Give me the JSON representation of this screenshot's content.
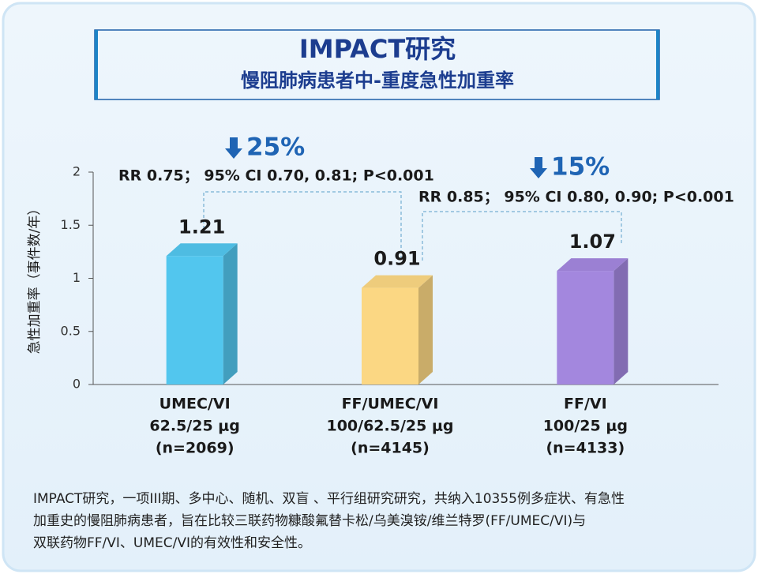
{
  "chart_data": {
    "type": "bar",
    "title": "IMPACT研究",
    "subtitle": "慢阻肺病患者中-重度急性加重率",
    "y_label": "急性加重率（事件数/年）",
    "categories": [
      [
        "UMEC/VI",
        "62.5/25 μg",
        "(n=2069)"
      ],
      [
        "FF/UMEC/VI",
        "100/62.5/25 μg",
        "(n=4145)"
      ],
      [
        "FF/VI",
        "100/25 μg",
        "(n=4133)"
      ]
    ],
    "values": [
      1.21,
      0.91,
      1.07
    ],
    "colors": [
      "#52c6ee",
      "#fbd783",
      "#a387de"
    ],
    "ylim": [
      0,
      2
    ],
    "yticks": [
      0,
      0.5,
      1,
      1.5,
      2
    ],
    "comparisons": [
      {
        "reduction": "25%",
        "text": "RR 0.75；  95% CI 0.70, 0.81; P<0.001"
      },
      {
        "reduction": "15%",
        "text": "RR 0.85；  95% CI 0.80, 0.90; P<0.001"
      }
    ],
    "note": [
      "IMPACT研究，一项III期、多中心、随机、双盲 、平行组研究研究，共纳入10355例多症状、有急性",
      "加重史的慢阻肺病患者，旨在比较三联药物糠酸氟替卡松/乌美溴铵/维兰特罗(FF/UMEC/VI)与",
      "双联药物FF/VI、UMEC/VI的有效性和安全性。"
    ]
  }
}
